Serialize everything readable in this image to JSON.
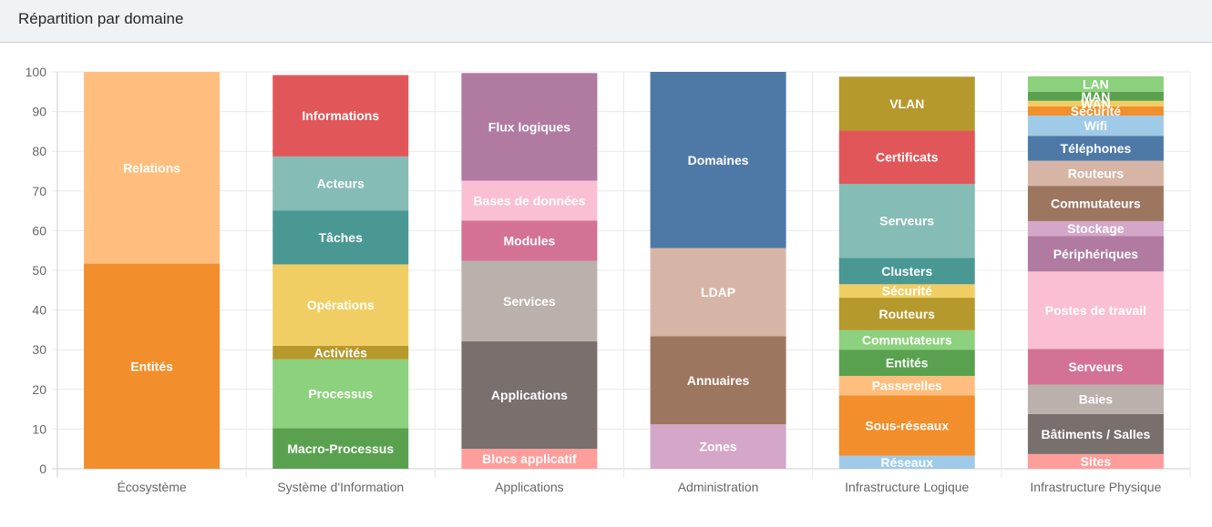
{
  "card": {
    "title": "Répartition par domaine"
  },
  "chart_data": {
    "type": "bar",
    "stacked": true,
    "title": "",
    "xlabel": "",
    "ylabel": "",
    "ylim": [
      0,
      100
    ],
    "yticks": [
      0,
      10,
      20,
      30,
      40,
      50,
      60,
      70,
      80,
      90,
      100
    ],
    "grid": true,
    "legend": "none",
    "categories": [
      "Écosystème",
      "Système d'Information",
      "Applications",
      "Administration",
      "Infrastructure Logique",
      "Infrastructure Physique"
    ],
    "bars": [
      {
        "category": "Écosystème",
        "segments": [
          {
            "label": "Entités",
            "value": 51.7,
            "color": "#f28e2b"
          },
          {
            "label": "Relations",
            "value": 48.3,
            "color": "#ffbe7d"
          }
        ]
      },
      {
        "category": "Système d'Information",
        "segments": [
          {
            "label": "Macro-Processus",
            "value": 10.2,
            "color": "#59a14f"
          },
          {
            "label": "Processus",
            "value": 17.4,
            "color": "#8cd17d"
          },
          {
            "label": "Activités",
            "value": 3.4,
            "color": "#b6992d"
          },
          {
            "label": "Opérations",
            "value": 20.5,
            "color": "#f1ce63"
          },
          {
            "label": "Tâches",
            "value": 13.6,
            "color": "#499894"
          },
          {
            "label": "Acteurs",
            "value": 13.6,
            "color": "#86bcb6"
          },
          {
            "label": "Informations",
            "value": 20.5,
            "color": "#e15759"
          }
        ]
      },
      {
        "category": "Applications",
        "segments": [
          {
            "label": "Blocs applicatif",
            "value": 5.0,
            "color": "#ff9d9a"
          },
          {
            "label": "Applications",
            "value": 27.1,
            "color": "#79706e"
          },
          {
            "label": "Services",
            "value": 20.3,
            "color": "#bab0ac"
          },
          {
            "label": "Modules",
            "value": 10.1,
            "color": "#d37295"
          },
          {
            "label": "Bases de données",
            "value": 10.1,
            "color": "#fabfd2"
          },
          {
            "label": "Flux logiques",
            "value": 27.1,
            "color": "#b07aa1"
          }
        ]
      },
      {
        "category": "Administration",
        "segments": [
          {
            "label": "Zones",
            "value": 11.2,
            "color": "#d4a6c8"
          },
          {
            "label": "Annuaires",
            "value": 22.2,
            "color": "#9d7660"
          },
          {
            "label": "LDAP",
            "value": 22.2,
            "color": "#d7b5a6"
          },
          {
            "label": "Domaines",
            "value": 44.4,
            "color": "#4e79a7"
          }
        ]
      },
      {
        "category": "Infrastructure Logique",
        "segments": [
          {
            "label": "Réseaux",
            "value": 3.3,
            "color": "#a0cbe8"
          },
          {
            "label": "Sous-réseaux",
            "value": 15.2,
            "color": "#f28e2b"
          },
          {
            "label": "Passerelles",
            "value": 4.9,
            "color": "#ffbe7d"
          },
          {
            "label": "Entités",
            "value": 6.6,
            "color": "#59a14f"
          },
          {
            "label": "Commutateurs",
            "value": 4.9,
            "color": "#8cd17d"
          },
          {
            "label": "Routeurs",
            "value": 8.2,
            "color": "#b6992d"
          },
          {
            "label": "Sécurité",
            "value": 3.4,
            "color": "#f1ce63"
          },
          {
            "label": "Clusters",
            "value": 6.6,
            "color": "#499894"
          },
          {
            "label": "Serveurs",
            "value": 18.7,
            "color": "#86bcb6"
          },
          {
            "label": "Certificats",
            "value": 13.4,
            "color": "#e15759"
          },
          {
            "label": "VLAN",
            "value": 13.6,
            "color": "#b6992d"
          }
        ]
      },
      {
        "category": "Infrastructure Physique",
        "segments": [
          {
            "label": "Sites",
            "value": 3.7,
            "color": "#ff9d9a"
          },
          {
            "label": "Bâtiments / Salles",
            "value": 10.1,
            "color": "#79706e"
          },
          {
            "label": "Baies",
            "value": 7.4,
            "color": "#bab0ac"
          },
          {
            "label": "Serveurs",
            "value": 9.0,
            "color": "#d37295"
          },
          {
            "label": "Postes de travail",
            "value": 19.5,
            "color": "#fabfd2"
          },
          {
            "label": "Périphériques",
            "value": 8.9,
            "color": "#b07aa1"
          },
          {
            "label": "Stockage",
            "value": 3.8,
            "color": "#d4a6c8"
          },
          {
            "label": "Commutateurs",
            "value": 8.9,
            "color": "#9d7660"
          },
          {
            "label": "Routeurs",
            "value": 6.3,
            "color": "#d7b5a6"
          },
          {
            "label": "Téléphones",
            "value": 6.3,
            "color": "#4e79a7"
          },
          {
            "label": "Wifi",
            "value": 5.1,
            "color": "#a0cbe8"
          },
          {
            "label": "Sécurité",
            "value": 2.3,
            "color": "#f28e2b"
          },
          {
            "label": "WAN",
            "value": 1.4,
            "color": "#f1ce63"
          },
          {
            "label": "MAN",
            "value": 2.3,
            "color": "#59a14f"
          },
          {
            "label": "LAN",
            "value": 3.9,
            "color": "#8cd17d"
          }
        ]
      }
    ]
  }
}
